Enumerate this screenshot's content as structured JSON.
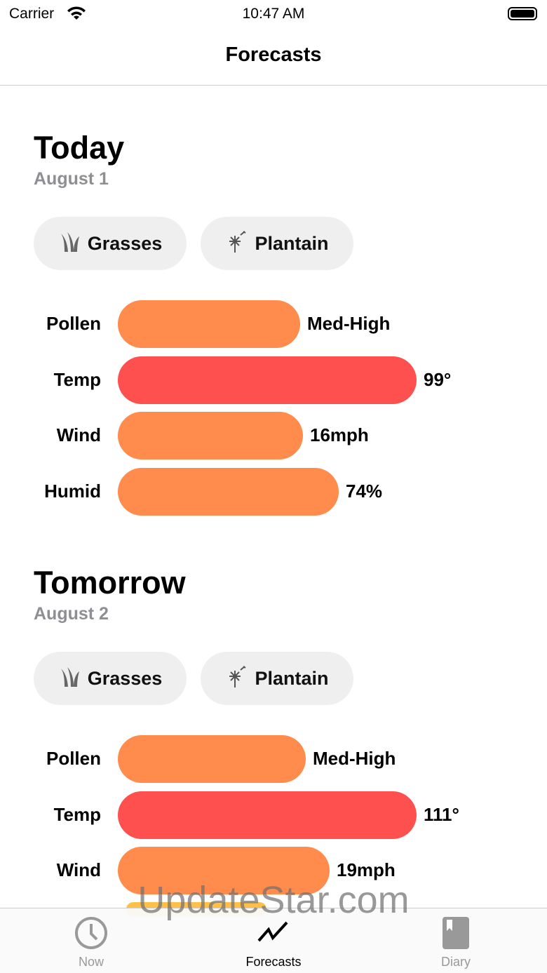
{
  "status": {
    "carrier": "Carrier",
    "time": "10:47 AM"
  },
  "nav": {
    "title": "Forecasts"
  },
  "colors": {
    "orange": "#FF8C4C",
    "red": "#FF5050",
    "yellow": "#FFC04A"
  },
  "days": [
    {
      "title": "Today",
      "date": "August 1",
      "chips": [
        {
          "icon": "grass-icon",
          "label": "Grasses"
        },
        {
          "icon": "dandelion-icon",
          "label": "Plantain"
        }
      ],
      "rows": [
        {
          "label": "Pollen",
          "value": "Med-High",
          "fill": 0.61,
          "color": "orange"
        },
        {
          "label": "Temp",
          "value": "99°",
          "fill": 1.0,
          "color": "red"
        },
        {
          "label": "Wind",
          "value": "16mph",
          "fill": 0.62,
          "color": "orange"
        },
        {
          "label": "Humid",
          "value": "74%",
          "fill": 0.74,
          "color": "orange"
        }
      ]
    },
    {
      "title": "Tomorrow",
      "date": "August 2",
      "chips": [
        {
          "icon": "grass-icon",
          "label": "Grasses"
        },
        {
          "icon": "dandelion-icon",
          "label": "Plantain"
        }
      ],
      "rows": [
        {
          "label": "Pollen",
          "value": "Med-High",
          "fill": 0.63,
          "color": "orange"
        },
        {
          "label": "Temp",
          "value": "111°",
          "fill": 1.0,
          "color": "red"
        },
        {
          "label": "Wind",
          "value": "19mph",
          "fill": 0.71,
          "color": "orange"
        }
      ]
    }
  ],
  "tabs": [
    {
      "label": "Now",
      "icon": "clock-icon",
      "active": false
    },
    {
      "label": "Forecasts",
      "icon": "chart-line-icon",
      "active": true
    },
    {
      "label": "Diary",
      "icon": "book-icon",
      "active": false
    }
  ],
  "watermark": "UpdateStar.com"
}
